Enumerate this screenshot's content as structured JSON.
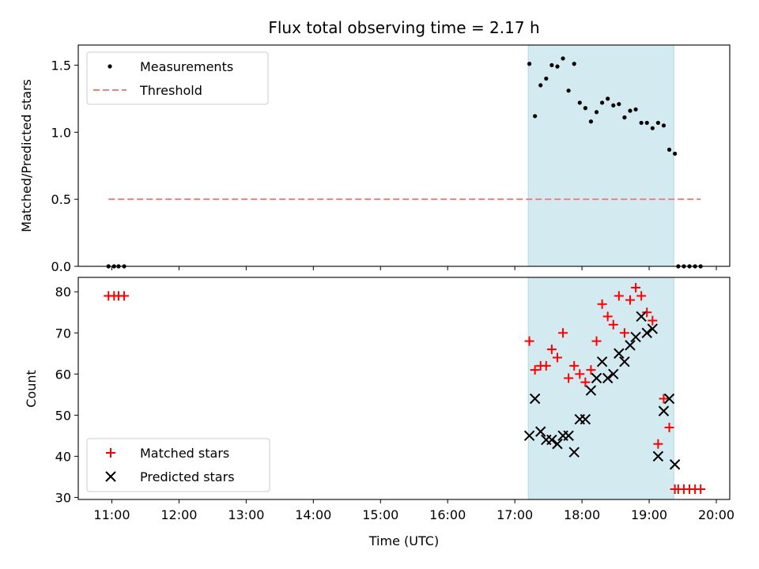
{
  "chart_data": [
    {
      "type": "scatter",
      "title": "Flux total observing time = 2.17 h",
      "xlabel": "",
      "ylabel": "Matched/Predicted stars",
      "ylim": [
        0,
        1.65
      ],
      "yticks": [
        "0.0",
        "0.5",
        "1.0",
        "1.5"
      ],
      "xlim": [
        "10:30",
        "20:12"
      ],
      "legend_position": "top-left",
      "shaded_region": {
        "x_start": "17:12",
        "x_end": "19:22",
        "color": "#d3eaf1"
      },
      "series": [
        {
          "name": "Measurements",
          "marker": "dot",
          "color": "#000000",
          "points": [
            [
              "10:57",
              0
            ],
            [
              "11:02",
              0
            ],
            [
              "11:06",
              0
            ],
            [
              "11:11",
              0
            ],
            [
              "17:13",
              1.51
            ],
            [
              "17:18",
              1.12
            ],
            [
              "17:23",
              1.35
            ],
            [
              "17:28",
              1.4
            ],
            [
              "17:33",
              1.5
            ],
            [
              "17:38",
              1.49
            ],
            [
              "17:43",
              1.55
            ],
            [
              "17:48",
              1.31
            ],
            [
              "17:53",
              1.51
            ],
            [
              "17:58",
              1.22
            ],
            [
              "18:03",
              1.18
            ],
            [
              "18:08",
              1.08
            ],
            [
              "18:13",
              1.15
            ],
            [
              "18:18",
              1.22
            ],
            [
              "18:23",
              1.25
            ],
            [
              "18:28",
              1.2
            ],
            [
              "18:33",
              1.21
            ],
            [
              "18:38",
              1.11
            ],
            [
              "18:43",
              1.16
            ],
            [
              "18:48",
              1.17
            ],
            [
              "18:53",
              1.07
            ],
            [
              "18:58",
              1.07
            ],
            [
              "19:03",
              1.03
            ],
            [
              "19:08",
              1.07
            ],
            [
              "19:13",
              1.05
            ],
            [
              "19:18",
              0.87
            ],
            [
              "19:23",
              0.84
            ],
            [
              "19:26",
              0
            ],
            [
              "19:31",
              0
            ],
            [
              "19:36",
              0
            ],
            [
              "19:41",
              0
            ],
            [
              "19:46",
              0
            ]
          ]
        },
        {
          "name": "Threshold",
          "marker": "dashed-line",
          "color": "#f08080",
          "points": [
            [
              "10:57",
              0.5
            ],
            [
              "19:46",
              0.5
            ]
          ]
        }
      ]
    },
    {
      "type": "scatter",
      "title": "",
      "xlabel": "Time (UTC)",
      "ylabel": "Count",
      "ylim": [
        29.5,
        83.5
      ],
      "yticks": [
        "30",
        "40",
        "50",
        "60",
        "70",
        "80"
      ],
      "xlim": [
        "10:30",
        "20:12"
      ],
      "xticks": [
        "11:00",
        "12:00",
        "13:00",
        "14:00",
        "15:00",
        "16:00",
        "17:00",
        "18:00",
        "19:00",
        "20:00"
      ],
      "legend_position": "bottom-left",
      "shaded_region": {
        "x_start": "17:12",
        "x_end": "19:22",
        "color": "#d3eaf1"
      },
      "series": [
        {
          "name": "Matched stars",
          "marker": "plus",
          "color": "#ff0000",
          "points": [
            [
              "10:57",
              79
            ],
            [
              "11:02",
              79
            ],
            [
              "11:06",
              79
            ],
            [
              "11:11",
              79
            ],
            [
              "17:13",
              68
            ],
            [
              "17:18",
              61
            ],
            [
              "17:23",
              62
            ],
            [
              "17:28",
              62
            ],
            [
              "17:33",
              66
            ],
            [
              "17:38",
              64
            ],
            [
              "17:43",
              70
            ],
            [
              "17:48",
              59
            ],
            [
              "17:53",
              62
            ],
            [
              "17:58",
              60
            ],
            [
              "18:03",
              58
            ],
            [
              "18:08",
              61
            ],
            [
              "18:13",
              68
            ],
            [
              "18:18",
              77
            ],
            [
              "18:23",
              74
            ],
            [
              "18:28",
              72
            ],
            [
              "18:33",
              79
            ],
            [
              "18:38",
              70
            ],
            [
              "18:43",
              78
            ],
            [
              "18:48",
              81
            ],
            [
              "18:53",
              79
            ],
            [
              "18:58",
              75
            ],
            [
              "19:03",
              73
            ],
            [
              "19:08",
              43
            ],
            [
              "19:13",
              54
            ],
            [
              "19:18",
              47
            ],
            [
              "19:23",
              32
            ],
            [
              "19:26",
              32
            ],
            [
              "19:31",
              32
            ],
            [
              "19:36",
              32
            ],
            [
              "19:41",
              32
            ],
            [
              "19:46",
              32
            ]
          ]
        },
        {
          "name": "Predicted stars",
          "marker": "x",
          "color": "#000000",
          "points": [
            [
              "17:13",
              45
            ],
            [
              "17:18",
              54
            ],
            [
              "17:23",
              46
            ],
            [
              "17:28",
              44
            ],
            [
              "17:33",
              44
            ],
            [
              "17:38",
              43
            ],
            [
              "17:43",
              45
            ],
            [
              "17:48",
              45
            ],
            [
              "17:53",
              41
            ],
            [
              "17:58",
              49
            ],
            [
              "18:03",
              49
            ],
            [
              "18:08",
              56
            ],
            [
              "18:13",
              59
            ],
            [
              "18:18",
              63
            ],
            [
              "18:23",
              59
            ],
            [
              "18:28",
              60
            ],
            [
              "18:33",
              65
            ],
            [
              "18:38",
              63
            ],
            [
              "18:43",
              67
            ],
            [
              "18:48",
              69
            ],
            [
              "18:53",
              74
            ],
            [
              "18:58",
              70
            ],
            [
              "19:03",
              71
            ],
            [
              "19:08",
              40
            ],
            [
              "19:13",
              51
            ],
            [
              "19:18",
              54
            ],
            [
              "19:23",
              38
            ]
          ]
        }
      ]
    }
  ]
}
